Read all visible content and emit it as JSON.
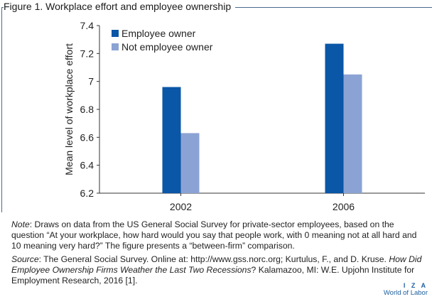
{
  "figure_title": "Figure 1. Workplace effort and employee ownership",
  "chart_data": {
    "type": "bar",
    "categories": [
      "2002",
      "2006"
    ],
    "series": [
      {
        "name": "Employee owner",
        "color": "#0a56a7",
        "values": [
          6.96,
          7.27
        ]
      },
      {
        "name": "Not employee owner",
        "color": "#8ba3d4",
        "values": [
          6.63,
          7.05
        ]
      }
    ],
    "ylabel": "Mean level of workplace effort",
    "xlabel": "",
    "ylim": [
      6.2,
      7.4
    ],
    "yticks": [
      "6.2",
      "6.4",
      "6.6",
      "6.8",
      "7",
      "7.2",
      "7.4"
    ],
    "legend_position": "top-left",
    "grid": false
  },
  "notes": {
    "note_label": "Note",
    "note_text": ": Draws on data from the US General Social Survey for private-sector employees, based on the question “At your workplace, how hard would you say that people work, with 0 meaning not at all hard and 10 meaning very hard?” The figure presents a “between-firm” comparison.",
    "source_label": "Source",
    "source_text_1": ": The General Social Survey. Online at: http://www.gss.norc.org; Kurtulus, F., and D. Kruse. ",
    "source_title": "How Did Employee Ownership Firms Weather the Last Two Recessions",
    "source_text_2": "? Kalamazoo, MI: W.E. Upjohn Institute for Employment Research, 2016 [1]."
  },
  "logo": {
    "line1": "I Z A",
    "line2": "World of Labor"
  }
}
